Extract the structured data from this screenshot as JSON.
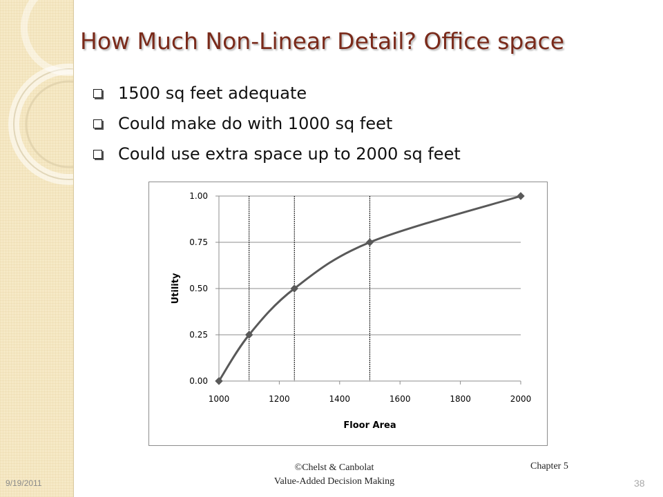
{
  "slide": {
    "title": "How Much Non-Linear Detail? Office space",
    "bullets": [
      "1500 sq feet adequate",
      "Could make do with 1000 sq feet",
      "Could use extra space up to 2000 sq feet"
    ],
    "footer": {
      "date": "9/19/2011",
      "credit_line1": "©Chelst & Canbolat",
      "credit_line2": "Value-Added Decision Making",
      "chapter": "Chapter 5",
      "page": "38"
    }
  },
  "colors": {
    "title": "#7a2a1a",
    "series": "#595959",
    "gridline": "#8c8c8c",
    "side_panel": "#f6e9c6"
  },
  "chart_data": {
    "type": "line",
    "title": "",
    "xlabel": "Floor Area",
    "ylabel": "Utility",
    "xlim": [
      1000,
      2000
    ],
    "ylim": [
      0,
      1
    ],
    "x_ticks": [
      1000,
      1200,
      1400,
      1600,
      1800,
      2000
    ],
    "y_ticks": [
      "0.00",
      "0.25",
      "0.50",
      "0.75",
      "1.00"
    ],
    "grid": "horizontal",
    "legend": "none",
    "smoothed": true,
    "marker": "diamond",
    "reference_lines_x": [
      1100,
      1250,
      1500
    ],
    "series": [
      {
        "x": [
          1000,
          1100,
          1250,
          1500,
          2000
        ],
        "y": [
          0.0,
          0.25,
          0.5,
          0.75,
          1.0
        ]
      }
    ]
  }
}
